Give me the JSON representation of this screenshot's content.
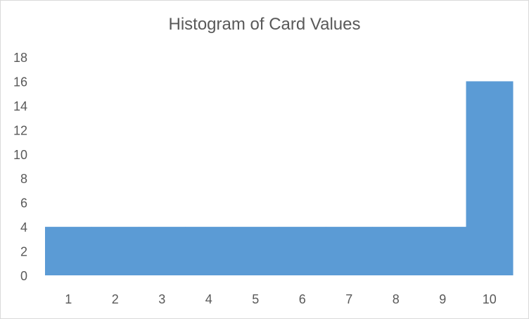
{
  "chart_data": {
    "type": "bar",
    "title": "Histogram of Card Values",
    "xlabel": "",
    "ylabel": "",
    "categories": [
      "1",
      "2",
      "3",
      "4",
      "5",
      "6",
      "7",
      "8",
      "9",
      "10"
    ],
    "values": [
      4,
      4,
      4,
      4,
      4,
      4,
      4,
      4,
      4,
      16
    ],
    "ylim": [
      0,
      18
    ],
    "yticks": [
      "0",
      "2",
      "4",
      "6",
      "8",
      "10",
      "12",
      "14",
      "16",
      "18"
    ],
    "grid": false,
    "legend": "none",
    "bar_color": "#5B9BD5",
    "gap_width": 0
  }
}
